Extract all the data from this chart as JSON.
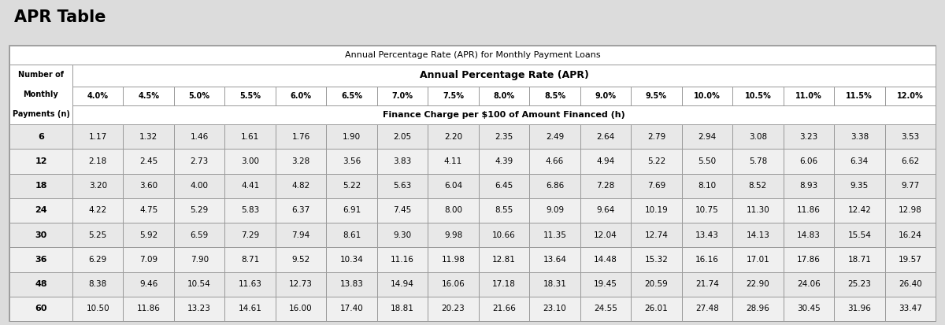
{
  "title": "APR Table",
  "table_title": "Annual Percentage Rate (APR) for Monthly Payment Loans",
  "header_apr": "Annual Percentage Rate (APR)",
  "header_finance": "Finance Charge per $100 of Amount Financed (h)",
  "col_header_lines": [
    "Number of",
    "Monthly",
    "Payments (n)"
  ],
  "apr_rates": [
    "4.0%",
    "4.5%",
    "5.0%",
    "5.5%",
    "6.0%",
    "6.5%",
    "7.0%",
    "7.5%",
    "8.0%",
    "8.5%",
    "9.0%",
    "9.5%",
    "10.0%",
    "10.5%",
    "11.0%",
    "11.5%",
    "12.0%"
  ],
  "row_labels": [
    "6",
    "12",
    "18",
    "24",
    "30",
    "36",
    "48",
    "60"
  ],
  "table_data": [
    [
      "1.17",
      "1.32",
      "1.46",
      "1.61",
      "1.76",
      "1.90",
      "2.05",
      "2.20",
      "2.35",
      "2.49",
      "2.64",
      "2.79",
      "2.94",
      "3.08",
      "3.23",
      "3.38",
      "3.53"
    ],
    [
      "2.18",
      "2.45",
      "2.73",
      "3.00",
      "3.28",
      "3.56",
      "3.83",
      "4.11",
      "4.39",
      "4.66",
      "4.94",
      "5.22",
      "5.50",
      "5.78",
      "6.06",
      "6.34",
      "6.62"
    ],
    [
      "3.20",
      "3.60",
      "4.00",
      "4.41",
      "4.82",
      "5.22",
      "5.63",
      "6.04",
      "6.45",
      "6.86",
      "7.28",
      "7.69",
      "8.10",
      "8.52",
      "8.93",
      "9.35",
      "9.77"
    ],
    [
      "4.22",
      "4.75",
      "5.29",
      "5.83",
      "6.37",
      "6.91",
      "7.45",
      "8.00",
      "8.55",
      "9.09",
      "9.64",
      "10.19",
      "10.75",
      "11.30",
      "11.86",
      "12.42",
      "12.98"
    ],
    [
      "5.25",
      "5.92",
      "6.59",
      "7.29",
      "7.94",
      "8.61",
      "9.30",
      "9.98",
      "10.66",
      "11.35",
      "12.04",
      "12.74",
      "13.43",
      "14.13",
      "14.83",
      "15.54",
      "16.24"
    ],
    [
      "6.29",
      "7.09",
      "7.90",
      "8.71",
      "9.52",
      "10.34",
      "11.16",
      "11.98",
      "12.81",
      "13.64",
      "14.48",
      "15.32",
      "16.16",
      "17.01",
      "17.86",
      "18.71",
      "19.57"
    ],
    [
      "8.38",
      "9.46",
      "10.54",
      "11.63",
      "12.73",
      "13.83",
      "14.94",
      "16.06",
      "17.18",
      "18.31",
      "19.45",
      "20.59",
      "21.74",
      "22.90",
      "24.06",
      "25.23",
      "26.40"
    ],
    [
      "10.50",
      "11.86",
      "13.23",
      "14.61",
      "16.00",
      "17.40",
      "18.81",
      "20.23",
      "21.66",
      "23.10",
      "24.55",
      "26.01",
      "27.48",
      "28.96",
      "30.45",
      "31.96",
      "33.47"
    ]
  ],
  "bg_color": "#dcdcdc",
  "table_bg": "#ffffff",
  "row_bg_odd": "#e8e8e8",
  "row_bg_even": "#f0f0f0",
  "border_color": "#999999",
  "text_color": "#000000"
}
